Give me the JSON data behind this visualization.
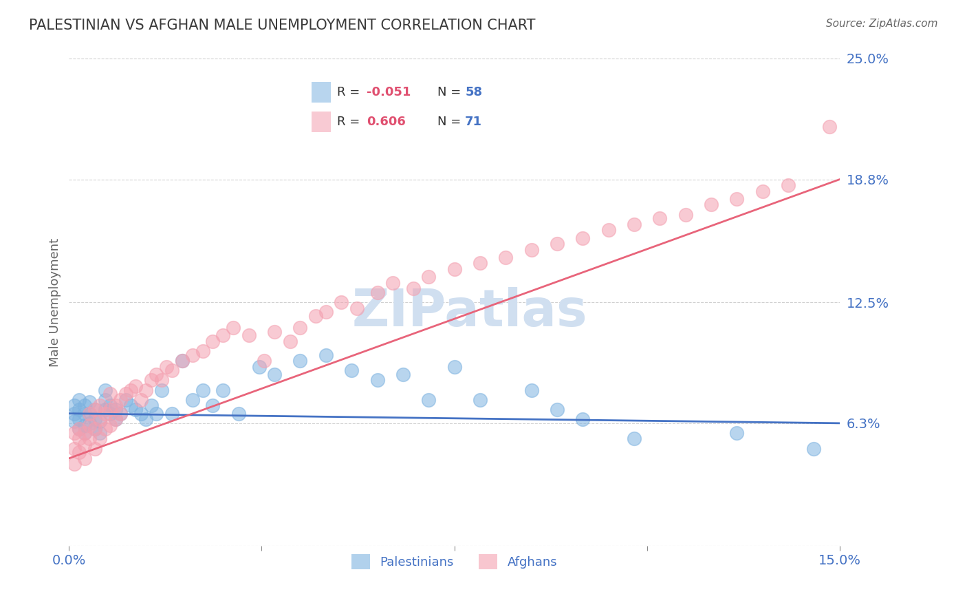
{
  "title": "PALESTINIAN VS AFGHAN MALE UNEMPLOYMENT CORRELATION CHART",
  "source": "Source: ZipAtlas.com",
  "ylabel": "Male Unemployment",
  "xlim": [
    0.0,
    0.15
  ],
  "ylim": [
    0.0,
    0.25
  ],
  "yticks": [
    0.0,
    0.063,
    0.125,
    0.188,
    0.25
  ],
  "ytick_labels": [
    "",
    "6.3%",
    "12.5%",
    "18.8%",
    "25.0%"
  ],
  "palestinians": {
    "color": "#7eb3e0",
    "R": -0.051,
    "N": 58,
    "label": "Palestinians"
  },
  "afghans": {
    "color": "#f4a0b0",
    "R": 0.606,
    "N": 71,
    "label": "Afghans"
  },
  "title_color": "#3a3a3a",
  "axis_color": "#4472c4",
  "watermark": "ZIPatlas",
  "watermark_color": "#d0dff0",
  "legend_R_color": "#e05070",
  "legend_N_color": "#4472c4",
  "blue_line_color": "#4472c4",
  "pink_line_color": "#e8647a",
  "grid_color": "#cccccc",
  "background_color": "#ffffff",
  "pal_line_y": [
    0.068,
    0.063
  ],
  "afg_line_y": [
    0.045,
    0.188
  ],
  "pal_x": [
    0.001,
    0.001,
    0.001,
    0.002,
    0.002,
    0.002,
    0.002,
    0.003,
    0.003,
    0.003,
    0.003,
    0.004,
    0.004,
    0.004,
    0.005,
    0.005,
    0.005,
    0.006,
    0.006,
    0.007,
    0.007,
    0.007,
    0.008,
    0.008,
    0.009,
    0.009,
    0.01,
    0.011,
    0.012,
    0.013,
    0.014,
    0.015,
    0.016,
    0.017,
    0.018,
    0.02,
    0.022,
    0.024,
    0.026,
    0.028,
    0.03,
    0.033,
    0.037,
    0.04,
    0.045,
    0.05,
    0.055,
    0.06,
    0.065,
    0.07,
    0.075,
    0.08,
    0.09,
    0.095,
    0.1,
    0.11,
    0.13,
    0.145
  ],
  "pal_y": [
    0.068,
    0.072,
    0.064,
    0.065,
    0.07,
    0.075,
    0.06,
    0.062,
    0.068,
    0.072,
    0.058,
    0.063,
    0.068,
    0.074,
    0.06,
    0.065,
    0.07,
    0.058,
    0.064,
    0.07,
    0.075,
    0.08,
    0.068,
    0.072,
    0.065,
    0.07,
    0.068,
    0.075,
    0.072,
    0.07,
    0.068,
    0.065,
    0.072,
    0.068,
    0.08,
    0.068,
    0.095,
    0.075,
    0.08,
    0.072,
    0.08,
    0.068,
    0.092,
    0.088,
    0.095,
    0.098,
    0.09,
    0.085,
    0.088,
    0.075,
    0.092,
    0.075,
    0.08,
    0.07,
    0.065,
    0.055,
    0.058,
    0.05
  ],
  "afg_x": [
    0.001,
    0.001,
    0.001,
    0.002,
    0.002,
    0.002,
    0.003,
    0.003,
    0.003,
    0.004,
    0.004,
    0.004,
    0.005,
    0.005,
    0.005,
    0.006,
    0.006,
    0.006,
    0.007,
    0.007,
    0.008,
    0.008,
    0.008,
    0.009,
    0.009,
    0.01,
    0.01,
    0.011,
    0.012,
    0.013,
    0.014,
    0.015,
    0.016,
    0.017,
    0.018,
    0.019,
    0.02,
    0.022,
    0.024,
    0.026,
    0.028,
    0.03,
    0.032,
    0.035,
    0.038,
    0.04,
    0.043,
    0.045,
    0.048,
    0.05,
    0.053,
    0.056,
    0.06,
    0.063,
    0.067,
    0.07,
    0.075,
    0.08,
    0.085,
    0.09,
    0.095,
    0.1,
    0.105,
    0.11,
    0.115,
    0.12,
    0.125,
    0.13,
    0.135,
    0.14,
    0.148
  ],
  "afg_y": [
    0.05,
    0.058,
    0.042,
    0.055,
    0.06,
    0.048,
    0.052,
    0.058,
    0.045,
    0.055,
    0.062,
    0.068,
    0.05,
    0.06,
    0.07,
    0.055,
    0.065,
    0.072,
    0.06,
    0.068,
    0.062,
    0.07,
    0.078,
    0.065,
    0.072,
    0.068,
    0.075,
    0.078,
    0.08,
    0.082,
    0.075,
    0.08,
    0.085,
    0.088,
    0.085,
    0.092,
    0.09,
    0.095,
    0.098,
    0.1,
    0.105,
    0.108,
    0.112,
    0.108,
    0.095,
    0.11,
    0.105,
    0.112,
    0.118,
    0.12,
    0.125,
    0.122,
    0.13,
    0.135,
    0.132,
    0.138,
    0.142,
    0.145,
    0.148,
    0.152,
    0.155,
    0.158,
    0.162,
    0.165,
    0.168,
    0.17,
    0.175,
    0.178,
    0.182,
    0.185,
    0.215
  ]
}
